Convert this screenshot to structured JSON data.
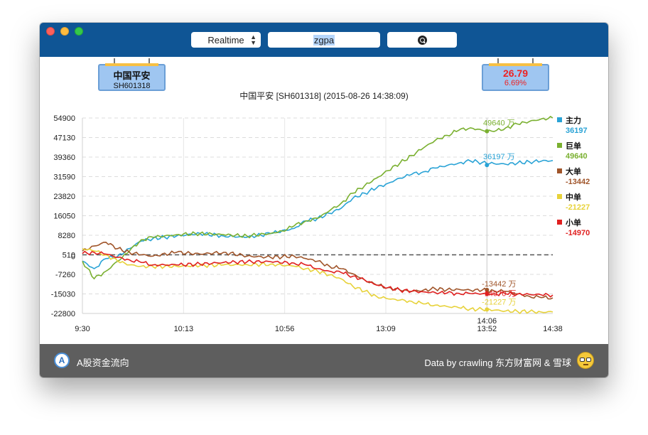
{
  "toolbar": {
    "mode_value": "Realtime",
    "search_value": "zgpa"
  },
  "stock_card": {
    "name": "中国平安",
    "code": "SH601318"
  },
  "price_card": {
    "price": "26.79",
    "change_pct": "6.69%"
  },
  "chart_data": {
    "type": "line",
    "title": "中国平安 [SH601318] (2015-08-26 14:38:09)",
    "unit": "万",
    "y_ticks": [
      "54900",
      "47130",
      "39360",
      "31590",
      "23820",
      "16050",
      "8280",
      "510",
      "0",
      "-7260",
      "-15030",
      "-22800"
    ],
    "y_tick_values": [
      54900,
      47130,
      39360,
      31590,
      23820,
      16050,
      8280,
      510,
      0,
      -7260,
      -15030,
      -22800
    ],
    "ylim": [
      -22800,
      54900
    ],
    "x_ticks": [
      "9:30",
      "10:13",
      "10:56",
      "13:09",
      "13:52",
      "14:38"
    ],
    "x_tick_idx": [
      0,
      43,
      86,
      129,
      172,
      200
    ],
    "x_max_idx": 200,
    "cursor": {
      "label": "14:06",
      "idx": 172
    },
    "baseline": 510,
    "series": [
      {
        "name": "主力",
        "value": "36197",
        "color": "#2aa3d6",
        "pts": [
          [
            0,
            -2000
          ],
          [
            5,
            -5000
          ],
          [
            10,
            -1000
          ],
          [
            15,
            0
          ],
          [
            20,
            3000
          ],
          [
            25,
            6000
          ],
          [
            30,
            7000
          ],
          [
            40,
            8000
          ],
          [
            50,
            9000
          ],
          [
            60,
            8000
          ],
          [
            70,
            7500
          ],
          [
            80,
            9000
          ],
          [
            90,
            11000
          ],
          [
            95,
            14000
          ],
          [
            100,
            15000
          ],
          [
            105,
            17000
          ],
          [
            110,
            19000
          ],
          [
            115,
            23000
          ],
          [
            120,
            25000
          ],
          [
            125,
            27000
          ],
          [
            130,
            29000
          ],
          [
            135,
            31000
          ],
          [
            140,
            32500
          ],
          [
            145,
            33500
          ],
          [
            150,
            35000
          ],
          [
            155,
            36000
          ],
          [
            160,
            37000
          ],
          [
            165,
            37800
          ],
          [
            170,
            37200
          ],
          [
            175,
            36800
          ],
          [
            180,
            36500
          ],
          [
            185,
            37000
          ],
          [
            190,
            37500
          ],
          [
            195,
            37700
          ],
          [
            200,
            38000
          ]
        ]
      },
      {
        "name": "巨单",
        "value": "49640",
        "color": "#7ab030",
        "pts": [
          [
            0,
            -2000
          ],
          [
            5,
            -9000
          ],
          [
            10,
            -6000
          ],
          [
            15,
            -2000
          ],
          [
            20,
            2000
          ],
          [
            25,
            6500
          ],
          [
            30,
            7500
          ],
          [
            40,
            8500
          ],
          [
            50,
            9000
          ],
          [
            60,
            8500
          ],
          [
            70,
            8000
          ],
          [
            80,
            9000
          ],
          [
            85,
            10000
          ],
          [
            90,
            12000
          ],
          [
            95,
            14000
          ],
          [
            100,
            15000
          ],
          [
            105,
            18000
          ],
          [
            110,
            21000
          ],
          [
            115,
            25000
          ],
          [
            120,
            28000
          ],
          [
            125,
            31000
          ],
          [
            130,
            34000
          ],
          [
            135,
            37000
          ],
          [
            140,
            40000
          ],
          [
            145,
            43000
          ],
          [
            150,
            46000
          ],
          [
            155,
            48000
          ],
          [
            160,
            50000
          ],
          [
            165,
            51000
          ],
          [
            170,
            50000
          ],
          [
            175,
            49500
          ],
          [
            180,
            51000
          ],
          [
            185,
            52500
          ],
          [
            190,
            53500
          ],
          [
            195,
            54500
          ],
          [
            200,
            54900
          ]
        ]
      },
      {
        "name": "大单",
        "value": "-13442",
        "color": "#a0552a",
        "pts": [
          [
            0,
            2000
          ],
          [
            5,
            4000
          ],
          [
            10,
            5500
          ],
          [
            15,
            3000
          ],
          [
            20,
            1500
          ],
          [
            25,
            500
          ],
          [
            30,
            0
          ],
          [
            40,
            1500
          ],
          [
            50,
            800
          ],
          [
            60,
            1500
          ],
          [
            70,
            0
          ],
          [
            80,
            -500
          ],
          [
            90,
            0
          ],
          [
            95,
            -1000
          ],
          [
            100,
            -2000
          ],
          [
            105,
            -4000
          ],
          [
            110,
            -5000
          ],
          [
            115,
            -7000
          ],
          [
            120,
            -9500
          ],
          [
            125,
            -11500
          ],
          [
            130,
            -12500
          ],
          [
            135,
            -13500
          ],
          [
            140,
            -14000
          ],
          [
            145,
            -13500
          ],
          [
            150,
            -13000
          ],
          [
            155,
            -13400
          ],
          [
            160,
            -13200
          ],
          [
            165,
            -13600
          ],
          [
            170,
            -13500
          ],
          [
            175,
            -13800
          ],
          [
            180,
            -14000
          ],
          [
            185,
            -15000
          ],
          [
            190,
            -16000
          ],
          [
            195,
            -16500
          ],
          [
            200,
            -16600
          ]
        ]
      },
      {
        "name": "中单",
        "value": "-21227",
        "color": "#e7d23a",
        "pts": [
          [
            0,
            3000
          ],
          [
            5,
            2000
          ],
          [
            10,
            500
          ],
          [
            15,
            -2000
          ],
          [
            20,
            -3500
          ],
          [
            25,
            -4000
          ],
          [
            30,
            -4200
          ],
          [
            40,
            -4000
          ],
          [
            50,
            -3800
          ],
          [
            60,
            -3500
          ],
          [
            70,
            -3400
          ],
          [
            80,
            -3200
          ],
          [
            90,
            -4000
          ],
          [
            95,
            -5000
          ],
          [
            100,
            -6000
          ],
          [
            105,
            -7500
          ],
          [
            110,
            -9000
          ],
          [
            115,
            -12000
          ],
          [
            120,
            -14000
          ],
          [
            125,
            -16000
          ],
          [
            130,
            -17000
          ],
          [
            135,
            -17500
          ],
          [
            140,
            -18000
          ],
          [
            145,
            -19000
          ],
          [
            150,
            -19500
          ],
          [
            155,
            -20000
          ],
          [
            160,
            -20500
          ],
          [
            165,
            -21000
          ],
          [
            170,
            -21200
          ],
          [
            175,
            -21500
          ],
          [
            180,
            -21800
          ],
          [
            185,
            -22000
          ],
          [
            190,
            -22100
          ],
          [
            195,
            -22200
          ],
          [
            200,
            -22200
          ]
        ]
      },
      {
        "name": "小单",
        "value": "-14970",
        "color": "#e02020",
        "pts": [
          [
            0,
            1000
          ],
          [
            5,
            1500
          ],
          [
            10,
            800
          ],
          [
            15,
            -500
          ],
          [
            20,
            -1500
          ],
          [
            25,
            -2500
          ],
          [
            30,
            -3500
          ],
          [
            40,
            -3500
          ],
          [
            50,
            -3200
          ],
          [
            60,
            -2500
          ],
          [
            70,
            -2300
          ],
          [
            80,
            -2200
          ],
          [
            90,
            -2800
          ],
          [
            95,
            -3500
          ],
          [
            100,
            -5000
          ],
          [
            105,
            -6000
          ],
          [
            110,
            -6500
          ],
          [
            115,
            -8000
          ],
          [
            120,
            -9500
          ],
          [
            125,
            -11500
          ],
          [
            130,
            -12500
          ],
          [
            135,
            -13500
          ],
          [
            140,
            -14000
          ],
          [
            145,
            -14200
          ],
          [
            150,
            -14500
          ],
          [
            155,
            -14700
          ],
          [
            160,
            -14800
          ],
          [
            165,
            -14900
          ],
          [
            170,
            -14970
          ],
          [
            175,
            -15000
          ],
          [
            180,
            -15000
          ],
          [
            185,
            -15100
          ],
          [
            190,
            -15200
          ],
          [
            195,
            -15400
          ],
          [
            200,
            -15500
          ]
        ]
      }
    ],
    "annotations": [
      {
        "series": 1,
        "idx": 172,
        "y": 49640,
        "label": "49640 万"
      },
      {
        "series": 0,
        "idx": 172,
        "y": 36197,
        "label": "36197 万"
      },
      {
        "series": 2,
        "idx": 172,
        "y": -13442,
        "label": "-13442 万"
      },
      {
        "series": 4,
        "idx": 172,
        "y": -14970,
        "label": "-14970 万"
      },
      {
        "series": 3,
        "idx": 172,
        "y": -21227,
        "label": "-21227 万"
      }
    ]
  },
  "footer": {
    "app_name": "A股资金流向",
    "credit": "Data by crawling 东方财富网 & 雪球"
  }
}
